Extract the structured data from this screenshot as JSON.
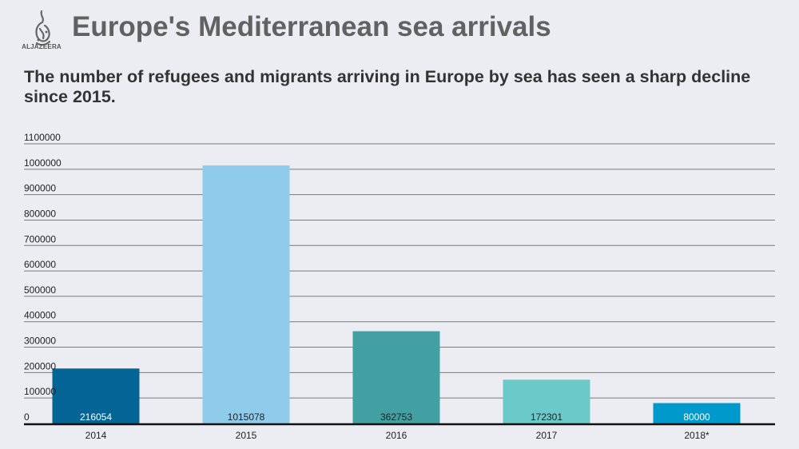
{
  "header": {
    "logo_text": "ALJAZEERA",
    "title": "Europe's Mediterranean sea arrivals",
    "subtitle": "The number of refugees and migrants arriving in Europe by sea has seen a sharp decline since 2015."
  },
  "chart_data": {
    "type": "bar",
    "title": "Europe's Mediterranean sea arrivals",
    "subtitle": "The number of refugees and migrants arriving in Europe by sea has seen a sharp decline since 2015.",
    "xlabel": "",
    "ylabel": "",
    "categories": [
      "2014",
      "2015",
      "2016",
      "2017",
      "2018*"
    ],
    "values": [
      216054,
      1015078,
      362753,
      172301,
      80000
    ],
    "value_labels": [
      "216054",
      "1015078",
      "362753",
      "172301",
      "80000"
    ],
    "colors": [
      "#036496",
      "#8FCBEB",
      "#42A0A2",
      "#6BC9CA",
      "#0099CC"
    ],
    "label_colors": [
      "#FFFFFF",
      "#222222",
      "#222222",
      "#222222",
      "#FFFFFF"
    ],
    "ylim": [
      0,
      1100000
    ],
    "yticks": [
      0,
      100000,
      200000,
      300000,
      400000,
      500000,
      600000,
      700000,
      800000,
      900000,
      1000000,
      1100000
    ],
    "ytick_labels": [
      "0",
      "100000",
      "200000",
      "300000",
      "400000",
      "500000",
      "600000",
      "700000",
      "800000",
      "900000",
      "1000000",
      "1100000"
    ],
    "grid": true,
    "legend": "none"
  }
}
